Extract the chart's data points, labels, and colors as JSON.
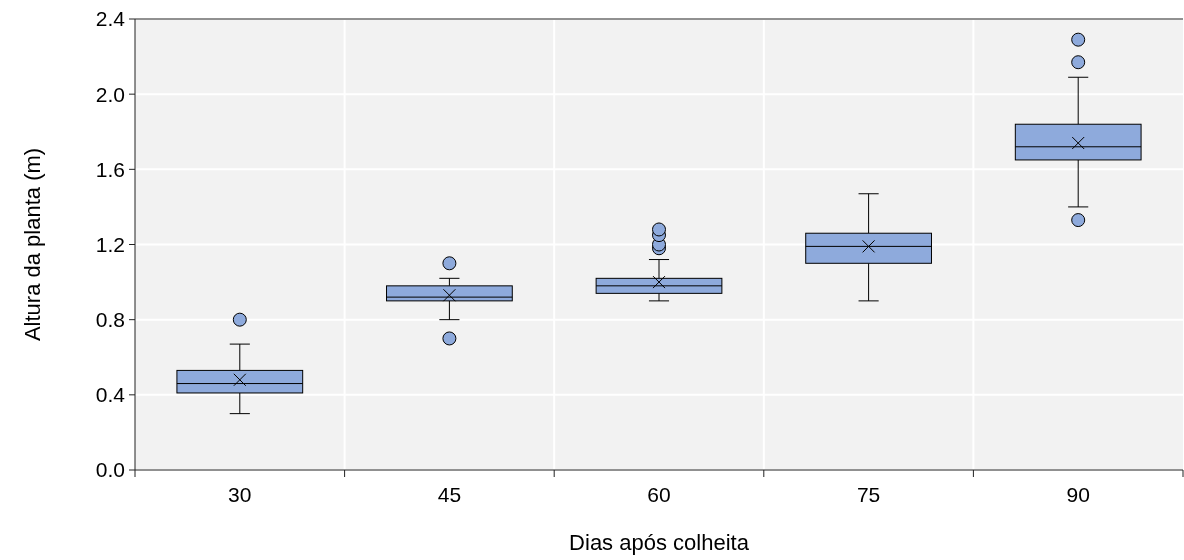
{
  "chart_data": {
    "type": "box",
    "xlabel": "Dias após colheita",
    "ylabel": "Altura da planta (m)",
    "categories": [
      "30",
      "45",
      "60",
      "75",
      "90"
    ],
    "ylim": [
      0,
      2.4
    ],
    "yticks": [
      {
        "value": 0,
        "label": "0.0"
      },
      {
        "value": 0.4,
        "label": "0.4"
      },
      {
        "value": 0.8,
        "label": "0.8"
      },
      {
        "value": 1.2,
        "label": "1.2"
      },
      {
        "value": 1.6,
        "label": "1.6"
      },
      {
        "value": 2.0,
        "label": "2.0"
      },
      {
        "value": 2.4,
        "label": "2.4"
      }
    ],
    "grid": true,
    "color": "#8eaadc",
    "boxes": [
      {
        "low": 0.3,
        "q1": 0.41,
        "median": 0.46,
        "q3": 0.53,
        "high": 0.67,
        "mean": 0.48,
        "outliers": [
          0.8
        ]
      },
      {
        "low": 0.8,
        "q1": 0.9,
        "median": 0.92,
        "q3": 0.98,
        "high": 1.02,
        "mean": 0.93,
        "outliers": [
          0.7,
          1.1
        ]
      },
      {
        "low": 0.9,
        "q1": 0.94,
        "median": 0.98,
        "q3": 1.02,
        "high": 1.12,
        "mean": 1.0,
        "outliers": [
          1.18,
          1.2,
          1.25,
          1.28
        ]
      },
      {
        "low": 0.9,
        "q1": 1.1,
        "median": 1.19,
        "q3": 1.26,
        "high": 1.47,
        "mean": 1.19
      },
      {
        "low": 1.4,
        "q1": 1.65,
        "median": 1.72,
        "q3": 1.84,
        "high": 2.09,
        "mean": 1.74,
        "outliers": [
          1.33,
          2.17,
          2.29
        ]
      }
    ]
  }
}
